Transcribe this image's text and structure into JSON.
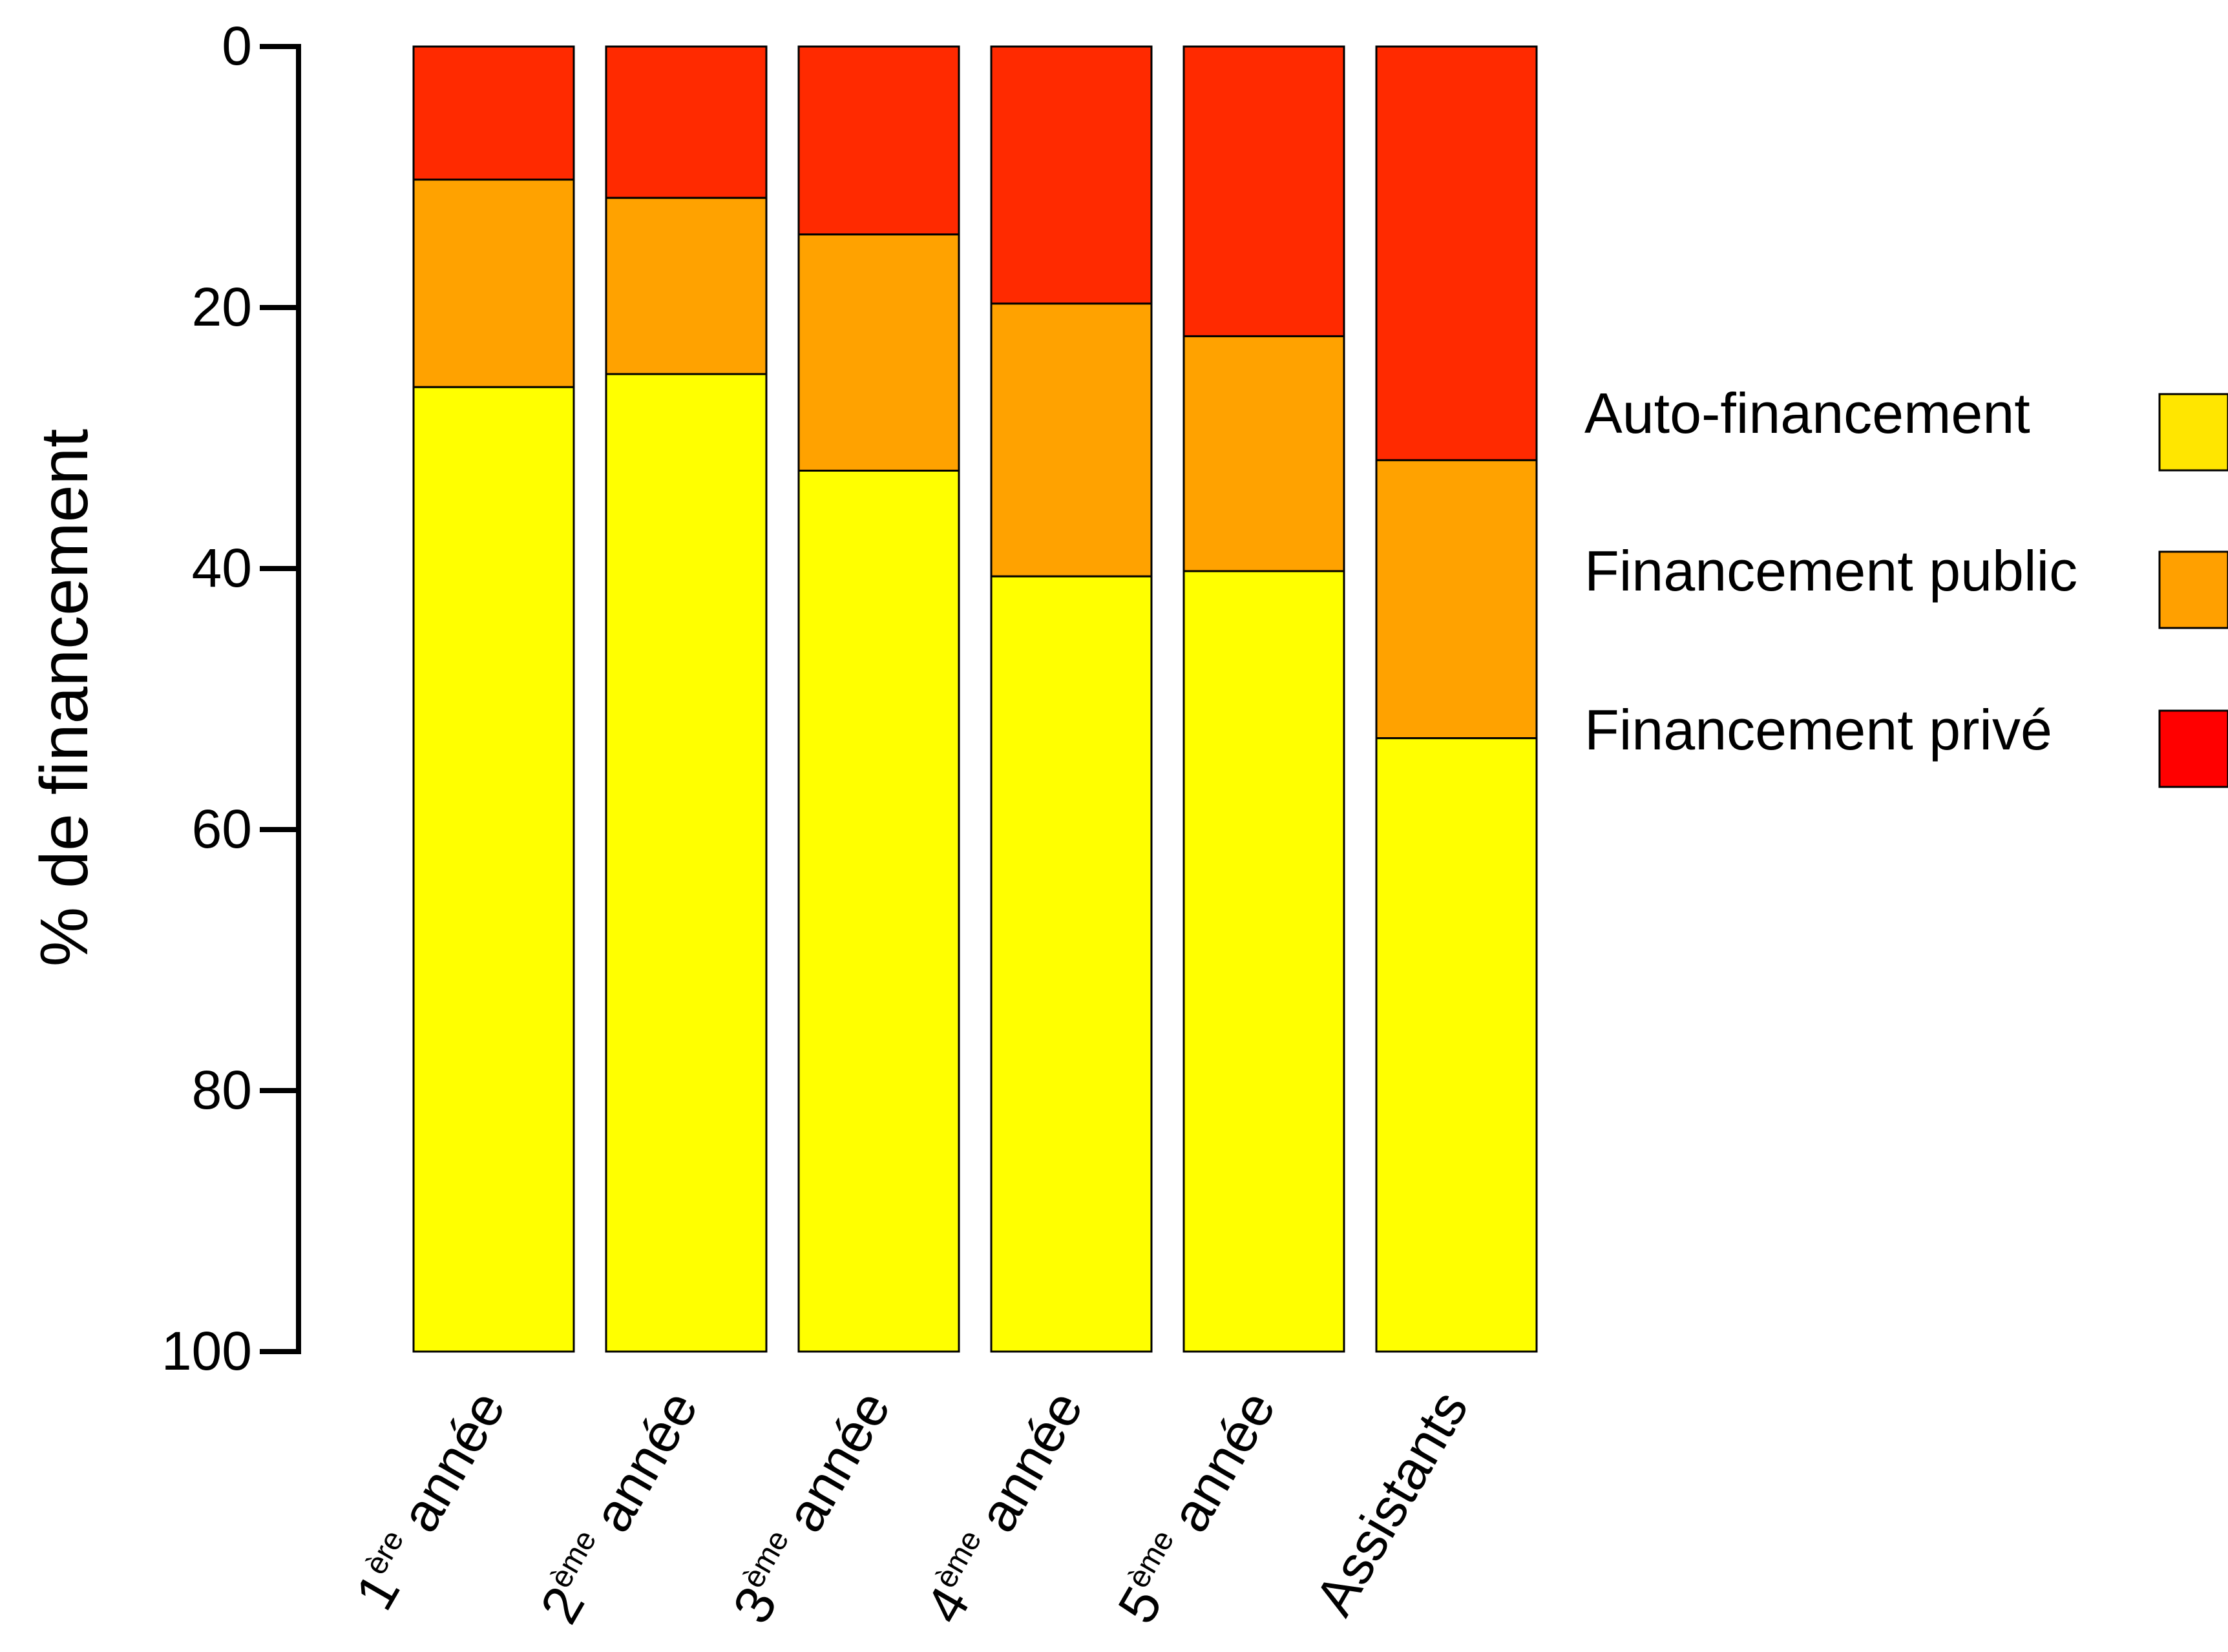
{
  "chart_data": {
    "type": "bar",
    "stacked": true,
    "y_axis_inverted": true,
    "ylabel": "% de financement",
    "ylim": [
      0,
      100
    ],
    "yticks": [
      0,
      20,
      40,
      60,
      80,
      100
    ],
    "categories": [
      {
        "main": "1",
        "sup": "ère",
        "rest": " année"
      },
      {
        "main": "2",
        "sup": "ème",
        "rest": " année"
      },
      {
        "main": "3",
        "sup": "ème",
        "rest": " année"
      },
      {
        "main": "4",
        "sup": "ème",
        "rest": " année"
      },
      {
        "main": "5",
        "sup": "ème",
        "rest": " année"
      },
      {
        "main": "Assistants",
        "sup": "",
        "rest": ""
      }
    ],
    "series": [
      {
        "name": "Financement privé",
        "color": "#ff2a00",
        "values": [
          10.2,
          11.6,
          14.4,
          19.7,
          22.2,
          31.7
        ]
      },
      {
        "name": "Financement public",
        "color": "#ffa200",
        "values": [
          15.9,
          13.5,
          18.1,
          20.9,
          18.0,
          21.3
        ]
      },
      {
        "name": "Auto-financement",
        "color": "#ffff00",
        "values": [
          73.9,
          74.9,
          67.5,
          59.4,
          59.8,
          47.0
        ]
      }
    ],
    "legend": {
      "placement": "right",
      "order": [
        "Auto-financement",
        "Financement public",
        "Financement privé"
      ],
      "swatch_colors": [
        "#ffe600",
        "#ffa000",
        "#ff0000"
      ]
    }
  }
}
